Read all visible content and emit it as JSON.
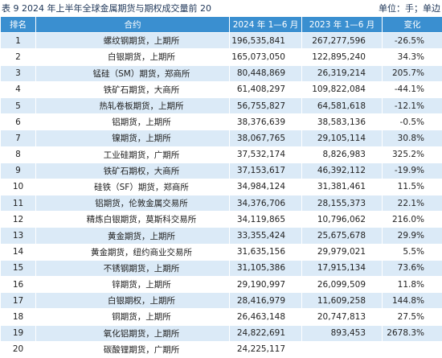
{
  "header": {
    "title": "表 9  2024 年上半年全球金属期货与期权成交量前 20",
    "unit": "单位：手；单边"
  },
  "table": {
    "columns": [
      "排名",
      "合约",
      "2024 年 1—6 月",
      "2023 年 1—6 月",
      "变化"
    ],
    "rows": [
      [
        "1",
        "螺纹钢期货，上期所",
        "196,535,841",
        "267,277,596",
        "-26.5%"
      ],
      [
        "2",
        "白银期货，上期所",
        "165,073,050",
        "122,895,240",
        "34.3%"
      ],
      [
        "3",
        "锰硅（SM）期货，郑商所",
        "80,448,869",
        "26,319,214",
        "205.7%"
      ],
      [
        "4",
        "铁矿石期货，大商所",
        "61,408,297",
        "109,822,084",
        "-44.1%"
      ],
      [
        "5",
        "热轧卷板期货，上期所",
        "56,755,827",
        "64,581,618",
        "-12.1%"
      ],
      [
        "6",
        "铝期货，上期所",
        "38,376,639",
        "38,583,136",
        "-0.5%"
      ],
      [
        "7",
        "镍期货，上期所",
        "38,067,765",
        "29,105,114",
        "30.8%"
      ],
      [
        "8",
        "工业硅期货，广期所",
        "37,532,174",
        "8,826,983",
        "325.2%"
      ],
      [
        "9",
        "铁矿石期权，大商所",
        "37,153,617",
        "46,392,112",
        "-19.9%"
      ],
      [
        "10",
        "硅铁（SF）期货，郑商所",
        "34,984,124",
        "31,381,461",
        "11.5%"
      ],
      [
        "11",
        "铝期货，伦敦金属交易所",
        "34,376,706",
        "28,155,373",
        "22.1%"
      ],
      [
        "12",
        "精炼白银期货，莫斯科交易所",
        "34,119,865",
        "10,796,062",
        "216.0%"
      ],
      [
        "13",
        "黄金期货，上期所",
        "33,355,424",
        "25,675,678",
        "29.9%"
      ],
      [
        "14",
        "黄金期货，纽约商业交易所",
        "31,635,156",
        "29,979,021",
        "5.5%"
      ],
      [
        "15",
        "不锈钢期货，上期所",
        "31,105,386",
        "17,915,134",
        "73.6%"
      ],
      [
        "16",
        "锌期货，上期所",
        "29,190,997",
        "26,099,509",
        "11.8%"
      ],
      [
        "17",
        "白银期权，上期所",
        "28,416,979",
        "11,609,258",
        "144.8%"
      ],
      [
        "18",
        "铜期货，上期所",
        "26,463,148",
        "20,747,813",
        "27.5%"
      ],
      [
        "19",
        "氧化铝期货，上期所",
        "24,822,691",
        "893,453",
        "2678.3%"
      ],
      [
        "20",
        "碳酸锂期货，广期所",
        "24,225,117",
        null,
        null
      ]
    ]
  }
}
